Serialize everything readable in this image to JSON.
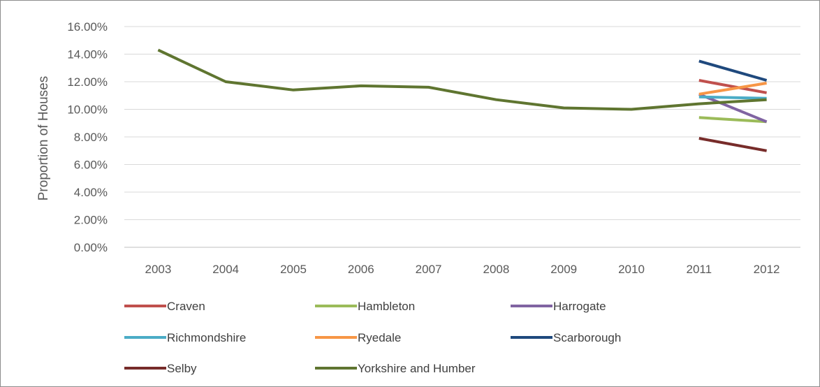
{
  "chart_data": {
    "type": "line",
    "ylabel": "Proportion of Houses",
    "xlabel": "",
    "title": "",
    "categories": [
      "2003",
      "2004",
      "2005",
      "2006",
      "2007",
      "2008",
      "2009",
      "2010",
      "2011",
      "2012"
    ],
    "y_ticks": [
      "0.00%",
      "2.00%",
      "4.00%",
      "6.00%",
      "8.00%",
      "10.00%",
      "12.00%",
      "14.00%",
      "16.00%"
    ],
    "ylim": [
      0,
      16
    ],
    "y_unit": "%",
    "grid": "horizontal",
    "legend_position": "bottom",
    "series": [
      {
        "name": "Craven",
        "color": "#c0504d",
        "values": [
          null,
          null,
          null,
          null,
          null,
          null,
          null,
          null,
          12.1,
          11.2
        ]
      },
      {
        "name": "Hambleton",
        "color": "#9bbb59",
        "values": [
          null,
          null,
          null,
          null,
          null,
          null,
          null,
          null,
          9.4,
          9.1
        ]
      },
      {
        "name": "Harrogate",
        "color": "#8064a2",
        "values": [
          null,
          null,
          null,
          null,
          null,
          null,
          null,
          null,
          11.1,
          9.1
        ]
      },
      {
        "name": "Richmondshire",
        "color": "#4bacc6",
        "values": [
          null,
          null,
          null,
          null,
          null,
          null,
          null,
          null,
          10.9,
          10.8
        ]
      },
      {
        "name": "Ryedale",
        "color": "#f79646",
        "values": [
          null,
          null,
          null,
          null,
          null,
          null,
          null,
          null,
          11.1,
          11.9
        ]
      },
      {
        "name": "Scarborough",
        "color": "#1f497d",
        "values": [
          null,
          null,
          null,
          null,
          null,
          null,
          null,
          null,
          13.5,
          12.1
        ]
      },
      {
        "name": "Selby",
        "color": "#772c2a",
        "values": [
          null,
          null,
          null,
          null,
          null,
          null,
          null,
          null,
          7.9,
          7.0
        ]
      },
      {
        "name": "Yorkshire and Humber",
        "color": "#5f7530",
        "values": [
          14.3,
          12.0,
          11.4,
          11.7,
          11.6,
          10.7,
          10.1,
          10.0,
          10.4,
          10.7
        ]
      }
    ]
  }
}
